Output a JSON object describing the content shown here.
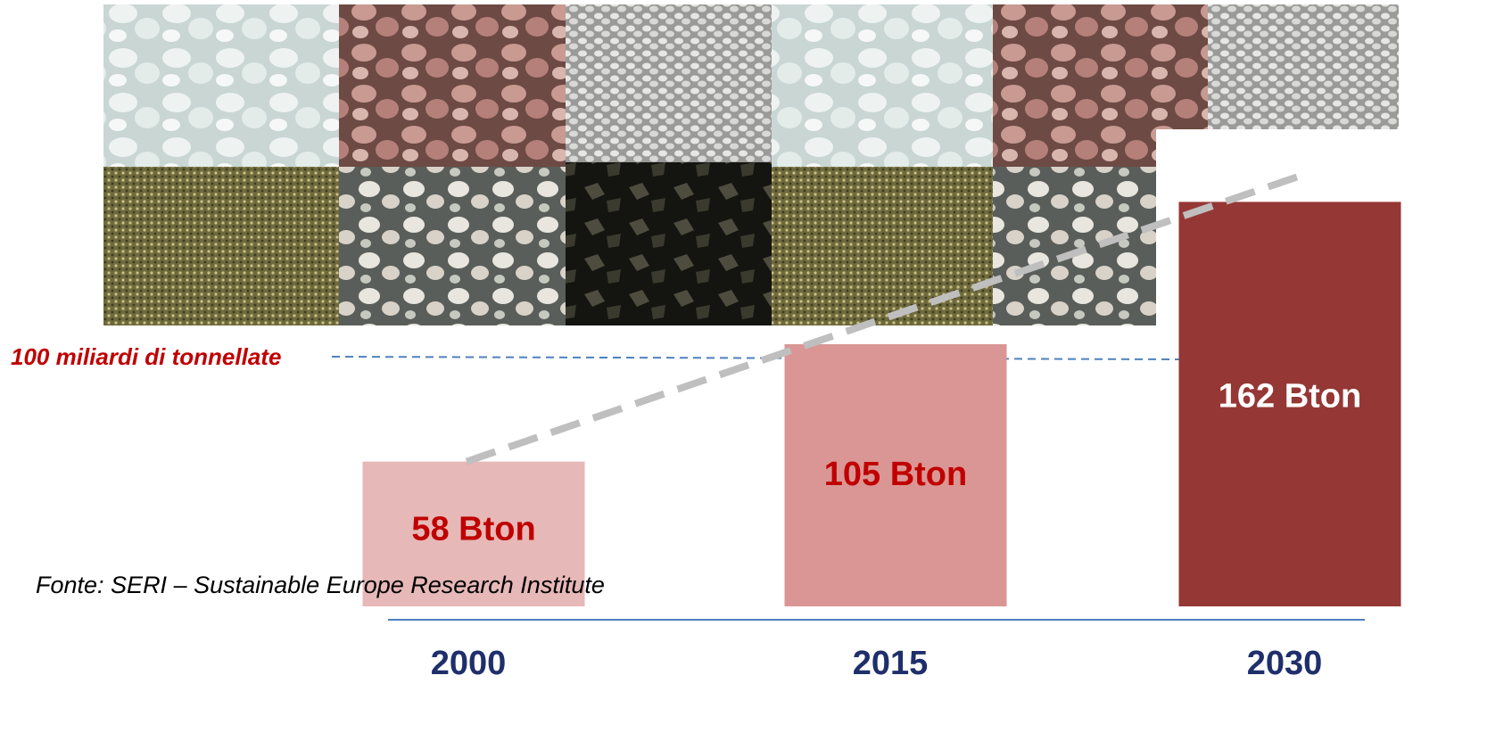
{
  "chart_data": {
    "type": "bar",
    "categories": [
      "2000",
      "2015",
      "2030"
    ],
    "values": [
      58,
      105,
      162
    ],
    "value_labels": [
      "58 Bton",
      "105 Bton",
      "162 Bton"
    ],
    "colors": [
      "#e6b8b7",
      "#da9694",
      "#953735"
    ],
    "label_colors": [
      "#c00000",
      "#c00000",
      "#ffffff"
    ],
    "ylim": [
      0,
      175
    ],
    "reference_line": {
      "value": 100,
      "label": "100 miliardi di tonnellate"
    },
    "source": "Fonte: SERI – Sustainable Europe Research Institute"
  }
}
